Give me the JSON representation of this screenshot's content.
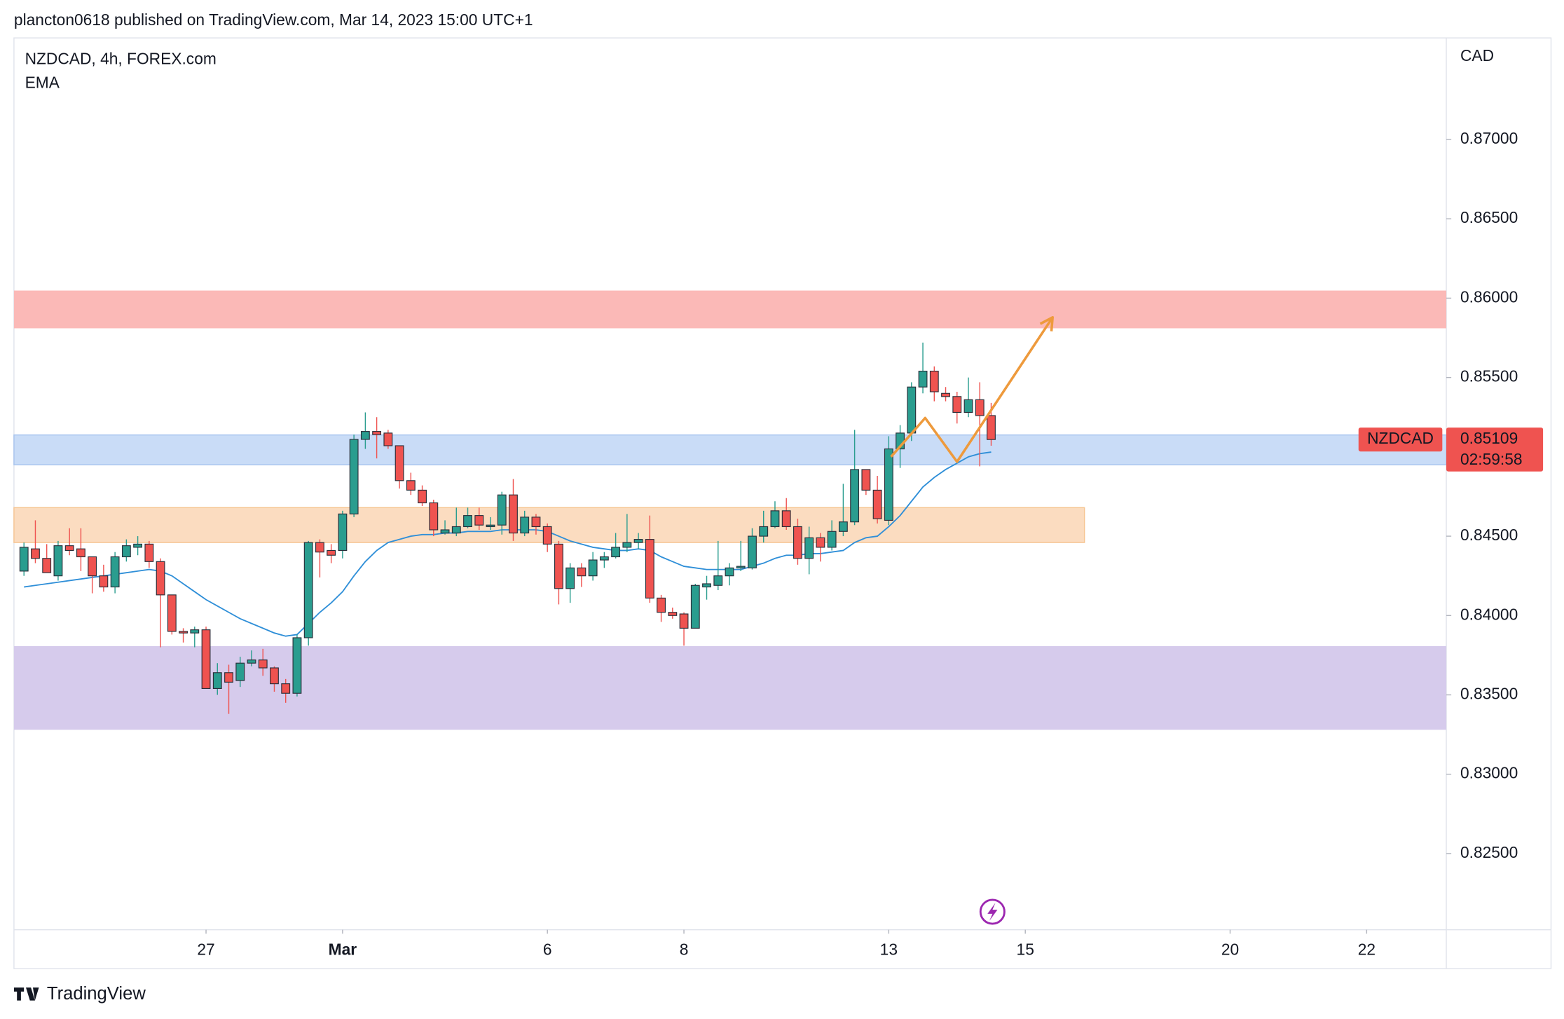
{
  "header": "plancton0618 published on TradingView.com, Mar 14, 2023 15:00 UTC+1",
  "footer": "TradingView",
  "chart_data": {
    "type": "candlestick",
    "title": "NZDCAD, 4h, FOREX.com",
    "y_axis_label": "CAD",
    "grid": false,
    "ylim": [
      0.8202,
      0.8764
    ],
    "yticks": [
      {
        "value": 0.825,
        "label": "0.82500"
      },
      {
        "value": 0.83,
        "label": "0.83000"
      },
      {
        "value": 0.835,
        "label": "0.83500"
      },
      {
        "value": 0.84,
        "label": "0.84000"
      },
      {
        "value": 0.845,
        "label": "0.84500"
      },
      {
        "value": 0.85,
        "label": "0.85000"
      },
      {
        "value": 0.855,
        "label": "0.85500"
      },
      {
        "value": 0.86,
        "label": "0.86000"
      },
      {
        "value": 0.865,
        "label": "0.86500"
      },
      {
        "value": 0.87,
        "label": "0.87000"
      }
    ],
    "xlim": [
      -0.88,
      125
    ],
    "xticks": [
      {
        "value": 16,
        "label": "27"
      },
      {
        "value": 28,
        "label": "Mar"
      },
      {
        "value": 46,
        "label": "6"
      },
      {
        "value": 58,
        "label": "8"
      },
      {
        "value": 76,
        "label": "13"
      },
      {
        "value": 88,
        "label": "15"
      },
      {
        "value": 106,
        "label": "20"
      },
      {
        "value": 118,
        "label": "22"
      }
    ],
    "series": [
      {
        "name": "NZDCAD",
        "up_color": "#2a9d8f",
        "down_color": "#ef5350",
        "open": [
          0.8428,
          0.8442,
          0.8436,
          0.8425,
          0.8444,
          0.8442,
          0.8437,
          0.8425,
          0.8418,
          0.8437,
          0.8443,
          0.8445,
          0.8434,
          0.8413,
          0.839,
          0.8389,
          0.8391,
          0.8354,
          0.8364,
          0.8359,
          0.837,
          0.8372,
          0.8367,
          0.8357,
          0.8351,
          0.8386,
          0.8446,
          0.8441,
          0.8441,
          0.8464,
          0.8511,
          0.8516,
          0.8515,
          0.8507,
          0.8485,
          0.8479,
          0.8471,
          0.8452,
          0.8452,
          0.8456,
          0.8463,
          0.8456,
          0.8457,
          0.8476,
          0.8452,
          0.8462,
          0.8456,
          0.8445,
          0.8417,
          0.843,
          0.8425,
          0.8435,
          0.8437,
          0.8443,
          0.8446,
          0.8448,
          0.8411,
          0.8402,
          0.8401,
          0.8392,
          0.8418,
          0.8419,
          0.8425,
          0.843,
          0.843,
          0.845,
          0.8456,
          0.8466,
          0.8456,
          0.8436,
          0.8449,
          0.8443,
          0.8453,
          0.8459,
          0.8492,
          0.8479,
          0.846,
          0.8505,
          0.8515,
          0.8544,
          0.8554,
          0.854,
          0.8538,
          0.8528,
          0.8536,
          0.8526
        ],
        "high": [
          0.8446,
          0.846,
          0.8445,
          0.8447,
          0.8455,
          0.8455,
          0.8437,
          0.8432,
          0.844,
          0.8448,
          0.845,
          0.8447,
          0.8436,
          0.8413,
          0.8392,
          0.8393,
          0.8393,
          0.837,
          0.8369,
          0.8374,
          0.8378,
          0.8379,
          0.8368,
          0.836,
          0.8388,
          0.8447,
          0.8448,
          0.8445,
          0.8466,
          0.8514,
          0.8528,
          0.8525,
          0.8517,
          0.8507,
          0.849,
          0.8482,
          0.8473,
          0.846,
          0.8468,
          0.8468,
          0.8468,
          0.8462,
          0.8478,
          0.8486,
          0.8466,
          0.8464,
          0.8458,
          0.8447,
          0.8433,
          0.8433,
          0.844,
          0.844,
          0.8452,
          0.8464,
          0.8452,
          0.8463,
          0.8413,
          0.8405,
          0.8402,
          0.842,
          0.8425,
          0.8447,
          0.8433,
          0.8447,
          0.8455,
          0.8466,
          0.8472,
          0.8474,
          0.8461,
          0.8456,
          0.8452,
          0.846,
          0.8483,
          0.8517,
          0.8492,
          0.8488,
          0.8513,
          0.852,
          0.8547,
          0.8572,
          0.8557,
          0.8544,
          0.8541,
          0.855,
          0.8547,
          0.8534
        ],
        "low": [
          0.8425,
          0.8433,
          0.8427,
          0.8422,
          0.8438,
          0.8428,
          0.8414,
          0.8415,
          0.8414,
          0.8434,
          0.8438,
          0.843,
          0.838,
          0.8388,
          0.8383,
          0.838,
          0.8354,
          0.835,
          0.8338,
          0.8355,
          0.8368,
          0.8362,
          0.8352,
          0.8345,
          0.8349,
          0.8381,
          0.8424,
          0.8433,
          0.8436,
          0.8462,
          0.8505,
          0.8499,
          0.8505,
          0.848,
          0.8476,
          0.8469,
          0.845,
          0.8451,
          0.845,
          0.8455,
          0.8454,
          0.8454,
          0.8451,
          0.8447,
          0.845,
          0.8451,
          0.844,
          0.8407,
          0.8408,
          0.8418,
          0.8422,
          0.843,
          0.8436,
          0.844,
          0.8442,
          0.8408,
          0.8396,
          0.8398,
          0.8381,
          0.8392,
          0.841,
          0.8416,
          0.8419,
          0.8428,
          0.8429,
          0.8446,
          0.8455,
          0.8454,
          0.8432,
          0.8426,
          0.8434,
          0.8441,
          0.845,
          0.8457,
          0.8476,
          0.8458,
          0.8457,
          0.8493,
          0.851,
          0.854,
          0.8535,
          0.8535,
          0.8521,
          0.8525,
          0.8494,
          0.8507
        ],
        "close": [
          0.8443,
          0.8436,
          0.8427,
          0.8444,
          0.8441,
          0.8437,
          0.8425,
          0.8418,
          0.8437,
          0.8444,
          0.8445,
          0.8434,
          0.8413,
          0.839,
          0.8389,
          0.8391,
          0.8354,
          0.8364,
          0.8358,
          0.837,
          0.8372,
          0.8367,
          0.8357,
          0.8351,
          0.8386,
          0.8446,
          0.844,
          0.8438,
          0.8464,
          0.8511,
          0.8516,
          0.8514,
          0.8507,
          0.8485,
          0.8479,
          0.8471,
          0.8454,
          0.8454,
          0.8456,
          0.8463,
          0.8457,
          0.8457,
          0.8476,
          0.8452,
          0.8462,
          0.8456,
          0.8445,
          0.8417,
          0.843,
          0.8425,
          0.8435,
          0.8437,
          0.8443,
          0.8446,
          0.8448,
          0.8411,
          0.8402,
          0.84,
          0.8392,
          0.8419,
          0.842,
          0.8425,
          0.843,
          0.8431,
          0.845,
          0.8456,
          0.8466,
          0.8456,
          0.8436,
          0.8449,
          0.8443,
          0.8453,
          0.8459,
          0.8492,
          0.8479,
          0.8461,
          0.8505,
          0.8515,
          0.8544,
          0.8554,
          0.8541,
          0.8538,
          0.8528,
          0.8536,
          0.8526,
          0.85109
        ]
      }
    ],
    "ema": {
      "name": "EMA",
      "color": "#2f8fd8",
      "values": [
        0.8418,
        0.8419,
        0.842,
        0.8421,
        0.8422,
        0.8423,
        0.8424,
        0.8425,
        0.8426,
        0.8427,
        0.8428,
        0.8429,
        0.8428,
        0.8425,
        0.842,
        0.8415,
        0.841,
        0.8406,
        0.8402,
        0.8398,
        0.8395,
        0.8392,
        0.8389,
        0.8387,
        0.8388,
        0.8395,
        0.8402,
        0.8408,
        0.8415,
        0.8425,
        0.8434,
        0.8441,
        0.8446,
        0.8448,
        0.845,
        0.8451,
        0.8451,
        0.8452,
        0.8452,
        0.8453,
        0.8453,
        0.8453,
        0.8454,
        0.8454,
        0.8454,
        0.8454,
        0.8453,
        0.845,
        0.8447,
        0.8445,
        0.8443,
        0.8442,
        0.8441,
        0.8441,
        0.8442,
        0.8441,
        0.8437,
        0.8434,
        0.8431,
        0.843,
        0.8429,
        0.8429,
        0.8429,
        0.8429,
        0.8431,
        0.8433,
        0.8436,
        0.8438,
        0.8438,
        0.8439,
        0.8439,
        0.844,
        0.8441,
        0.8446,
        0.8449,
        0.845,
        0.8456,
        0.8463,
        0.8472,
        0.8481,
        0.8487,
        0.8492,
        0.8496,
        0.85,
        0.8502,
        0.8503
      ]
    },
    "zones": [
      {
        "range": [
          0.8581,
          0.86048
        ],
        "color": "#fbb9b7"
      },
      {
        "range": [
          0.8495,
          0.85138
        ],
        "color": "#c9dcf7",
        "border": "#a7c4ee"
      },
      {
        "range": [
          0.8446,
          0.8468
        ],
        "color": "#fbdcc0",
        "border": "#f6c592",
        "x_end": 93.2
      },
      {
        "range": [
          0.8328,
          0.83807
        ],
        "color": "#d6cbec"
      }
    ],
    "arrow": {
      "color": "#ee9a3c",
      "x": [
        76.2,
        79.2,
        82.0,
        90.4
      ],
      "y": [
        0.85,
        0.85245,
        0.84969,
        0.85879
      ]
    },
    "last_price": {
      "value": 0.85109,
      "countdown": "02:59:58",
      "color": "#ef5350"
    }
  }
}
